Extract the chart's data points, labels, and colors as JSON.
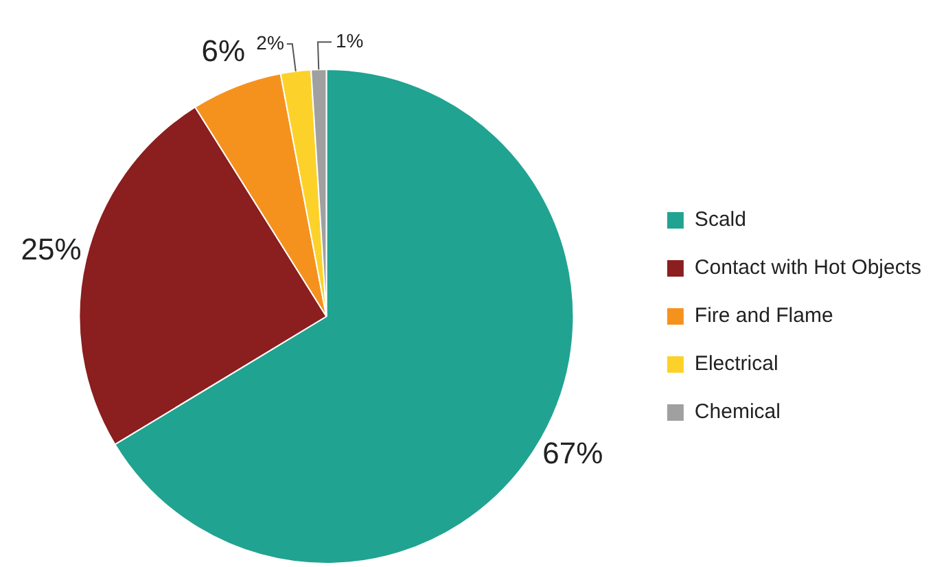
{
  "chart_data": {
    "type": "pie",
    "categories": [
      "Scald",
      "Contact with Hot Objects",
      "Fire and Flame",
      "Electrical",
      "Chemical"
    ],
    "values": [
      67,
      25,
      6,
      2,
      1
    ],
    "colors": [
      "#21a391",
      "#8b1e1e",
      "#f5921e",
      "#fcd22a",
      "#a0a0a0"
    ],
    "value_labels": [
      "67%",
      "25%",
      "6%",
      "2%",
      "1%"
    ],
    "legend": "right"
  }
}
